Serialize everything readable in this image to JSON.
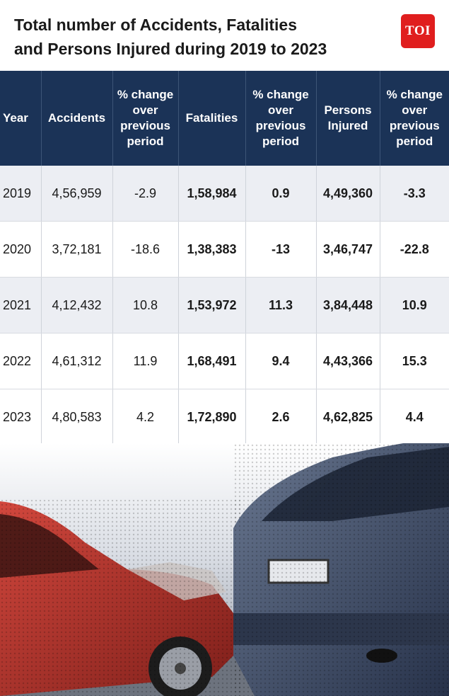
{
  "header": {
    "title_line1": "Total number of Accidents, Fatalities",
    "title_line2": "and Persons Injured during 2019 to 2023",
    "logo_text": "TOI"
  },
  "table": {
    "columns": {
      "year": "Year",
      "accidents": "Accidents",
      "pct_accidents": "% change over previous period",
      "fatalities": "Fatalities",
      "pct_fatalities": "% change over previous period",
      "injured": "Persons Injured",
      "pct_injured": "% change over previous period"
    },
    "rows": [
      {
        "year": "2019",
        "accidents": "4,56,959",
        "pct_accidents": "-2.9",
        "fatalities": "1,58,984",
        "pct_fatalities": "0.9",
        "injured": "4,49,360",
        "pct_injured": "-3.3"
      },
      {
        "year": "2020",
        "accidents": "3,72,181",
        "pct_accidents": "-18.6",
        "fatalities": "1,38,383",
        "pct_fatalities": "-13",
        "injured": "3,46,747",
        "pct_injured": "-22.8"
      },
      {
        "year": "2021",
        "accidents": "4,12,432",
        "pct_accidents": "10.8",
        "fatalities": "1,53,972",
        "pct_fatalities": "11.3",
        "injured": "3,84,448",
        "pct_injured": "10.9"
      },
      {
        "year": "2022",
        "accidents": "4,61,312",
        "pct_accidents": "11.9",
        "fatalities": "1,68,491",
        "pct_fatalities": "9.4",
        "injured": "4,43,366",
        "pct_injured": "15.3"
      },
      {
        "year": "2023",
        "accidents": "4,80,583",
        "pct_accidents": "4.2",
        "fatalities": "1,72,890",
        "pct_fatalities": "2.6",
        "injured": "4,62,825",
        "pct_injured": "4.4"
      }
    ]
  },
  "colors": {
    "header_bg": "#1b3357",
    "logo_red": "#e01e1e",
    "red_car": "#b8332b",
    "blue_car": "#3c4a63"
  }
}
